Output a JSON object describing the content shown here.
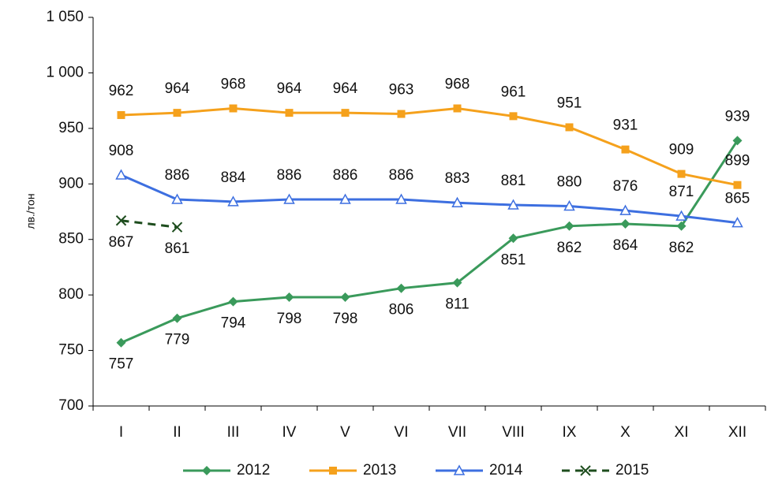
{
  "chart_data": {
    "type": "line",
    "y_label": "лв./тон",
    "categories": [
      "I",
      "II",
      "III",
      "IV",
      "V",
      "VI",
      "VII",
      "VIII",
      "IX",
      "X",
      "XI",
      "XII"
    ],
    "series": [
      {
        "name": "2012",
        "color": "#3a9a5b",
        "marker": "diamond",
        "values": [
          757,
          779,
          794,
          798,
          798,
          806,
          811,
          851,
          862,
          864,
          862,
          939
        ]
      },
      {
        "name": "2013",
        "color": "#f5a11c",
        "marker": "square",
        "values": [
          962,
          964,
          968,
          964,
          964,
          963,
          968,
          961,
          951,
          931,
          909,
          899
        ]
      },
      {
        "name": "2014",
        "color": "#3d6fe0",
        "marker": "triangle",
        "values": [
          908,
          886,
          884,
          886,
          886,
          886,
          883,
          881,
          880,
          876,
          871,
          865
        ]
      },
      {
        "name": "2015",
        "color": "#1e4d1e",
        "marker": "x",
        "dashed": true,
        "values": [
          867,
          861,
          null,
          null,
          null,
          null,
          null,
          null,
          null,
          null,
          null,
          null
        ]
      }
    ],
    "ylim": [
      700,
      1050
    ],
    "yticks": [
      700,
      750,
      800,
      850,
      900,
      950,
      {
        "value": 1000,
        "label": "1 000"
      },
      {
        "value": 1050,
        "label": "1 050"
      }
    ]
  }
}
